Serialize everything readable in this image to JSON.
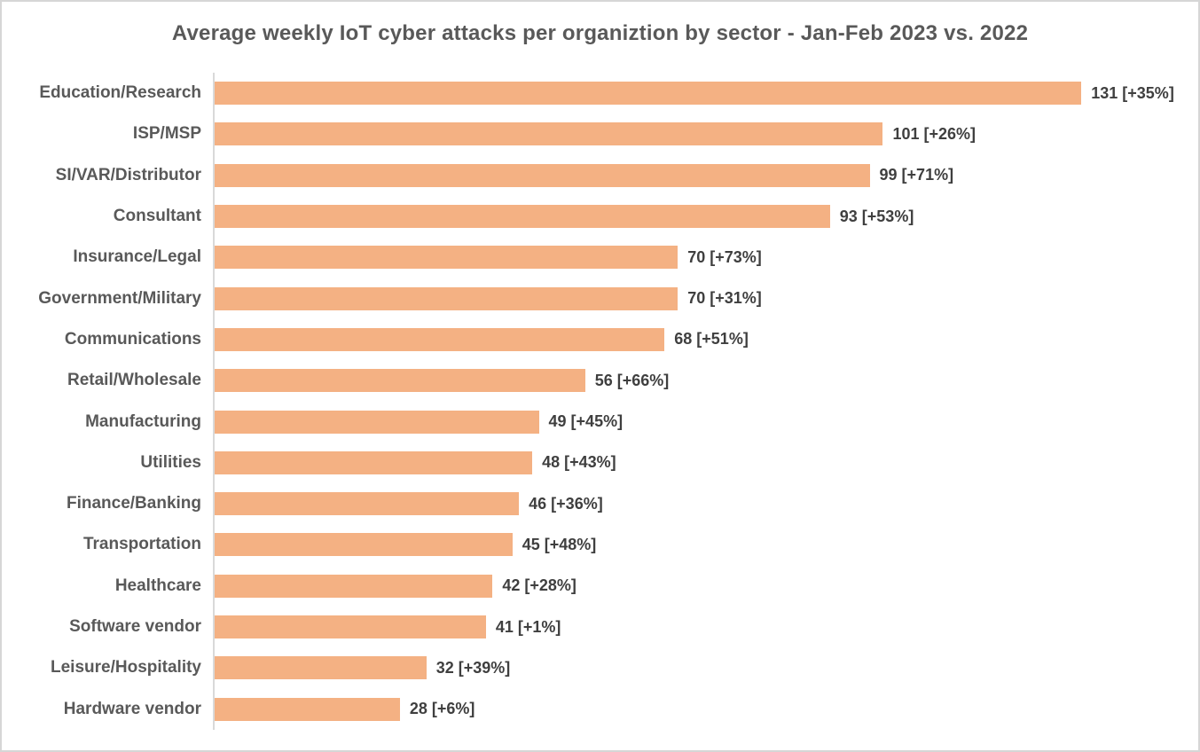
{
  "chart_data": {
    "type": "bar",
    "orientation": "horizontal",
    "title": "Average weekly IoT cyber attacks per organiztion by sector - Jan-Feb 2023 vs. 2022",
    "categories": [
      "Education/Research",
      "ISP/MSP",
      "SI/VAR/Distributor",
      "Consultant",
      "Insurance/Legal",
      "Government/Military",
      "Communications",
      "Retail/Wholesale",
      "Manufacturing",
      "Utilities",
      "Finance/Banking",
      "Transportation",
      "Healthcare",
      "Software vendor",
      "Leisure/Hospitality",
      "Hardware vendor"
    ],
    "values": [
      131,
      101,
      99,
      93,
      70,
      70,
      68,
      56,
      49,
      48,
      46,
      45,
      42,
      41,
      32,
      28
    ],
    "pct_change_vs_2022": [
      35,
      26,
      71,
      53,
      73,
      31,
      51,
      66,
      45,
      43,
      36,
      48,
      28,
      1,
      39,
      6
    ],
    "data_labels": [
      "131 [+35%]",
      "101 [+26%]",
      "99 [+71%]",
      "93 [+53%]",
      "70 [+73%]",
      "70 [+31%]",
      "68 [+51%]",
      "56 [+66%]",
      "49 [+45%]",
      "48 [+43%]",
      "46 [+36%]",
      "45 [+48%]",
      "42 [+28%]",
      "41 [+1%]",
      "32 [+39%]",
      "28 [+6%]"
    ],
    "xlabel": "",
    "ylabel": "",
    "xlim": [
      0,
      140
    ],
    "grid": false,
    "legend": false,
    "bar_color": "#F4B183",
    "category_label_color": "#595959",
    "value_label_color": "#3F3F3F",
    "title_color": "#595959",
    "axis_line_color": "#D9D9D9"
  }
}
